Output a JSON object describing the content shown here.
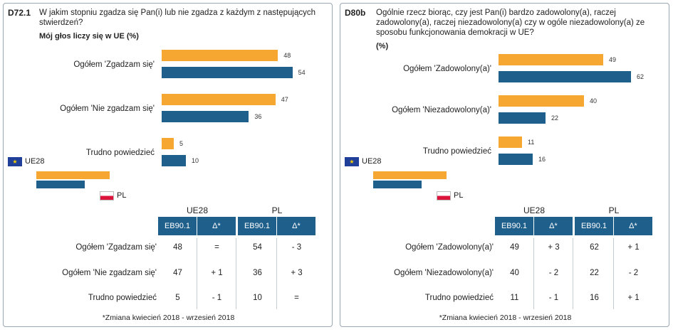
{
  "colors": {
    "ue28": "#f6a732",
    "pl": "#1f5f8b"
  },
  "panels": [
    {
      "id": "D72.1",
      "question": "W jakim stopniu zgadza się Pan(i) lub nie zgadza z każdym z następujących stwierdzeń?",
      "subtitle": "Mój głos liczy się w UE  (%)",
      "legend": {
        "ue28": "UE28",
        "pl": "PL"
      },
      "table_headers": {
        "group_ue28": "UE28",
        "group_pl": "PL",
        "col_eb": "EB90.1",
        "col_delta": "Δ*"
      },
      "rows": [
        {
          "label": "Ogółem 'Zgadzam się'",
          "ue28": "48",
          "ue28_delta": "=",
          "pl": "54",
          "pl_delta": "- 3"
        },
        {
          "label": "Ogółem 'Nie zgadzam się'",
          "ue28": "47",
          "ue28_delta": "+ 1",
          "pl": "36",
          "pl_delta": "+ 3"
        },
        {
          "label": "Trudno powiedzieć",
          "ue28": "5",
          "ue28_delta": "- 1",
          "pl": "10",
          "pl_delta": "="
        }
      ],
      "footnote": "*Zmiana kwiecień 2018 - wrzesień 2018"
    },
    {
      "id": "D80b",
      "question": "Ogólnie rzecz biorąc, czy jest Pan(i) bardzo zadowolony(a), raczej zadowolony(a), raczej niezadowolony(a) czy w ogóle niezadowolony(a) ze sposobu funkcjonowania demokracji w UE?",
      "subtitle": "(%)",
      "legend": {
        "ue28": "UE28",
        "pl": "PL"
      },
      "table_headers": {
        "group_ue28": "UE28",
        "group_pl": "PL",
        "col_eb": "EB90.1",
        "col_delta": "Δ*"
      },
      "rows": [
        {
          "label": "Ogółem 'Zadowolony(a)'",
          "ue28": "49",
          "ue28_delta": "+ 3",
          "pl": "62",
          "pl_delta": "+ 1"
        },
        {
          "label": "Ogółem 'Niezadowolony(a)'",
          "ue28": "40",
          "ue28_delta": "- 2",
          "pl": "22",
          "pl_delta": "- 2"
        },
        {
          "label": "Trudno powiedzieć",
          "ue28": "11",
          "ue28_delta": "- 1",
          "pl": "16",
          "pl_delta": "+ 1"
        }
      ],
      "footnote": "*Zmiana kwiecień 2018 - wrzesień 2018"
    }
  ],
  "chart_data": [
    {
      "type": "bar",
      "orientation": "horizontal",
      "title": "Mój głos liczy się w UE  (%)",
      "categories": [
        "Ogółem 'Zgadzam się'",
        "Ogółem 'Nie zgadzam się'",
        "Trudno powiedzieć"
      ],
      "series": [
        {
          "name": "UE28",
          "values": [
            48,
            47,
            5
          ]
        },
        {
          "name": "PL",
          "values": [
            54,
            36,
            10
          ]
        }
      ]
    },
    {
      "type": "bar",
      "orientation": "horizontal",
      "title": "(%)",
      "categories": [
        "Ogółem 'Zadowolony(a)'",
        "Ogółem 'Niezadowolony(a)'",
        "Trudno powiedzieć"
      ],
      "series": [
        {
          "name": "UE28",
          "values": [
            49,
            40,
            11
          ]
        },
        {
          "name": "PL",
          "values": [
            62,
            22,
            16
          ]
        }
      ]
    }
  ]
}
